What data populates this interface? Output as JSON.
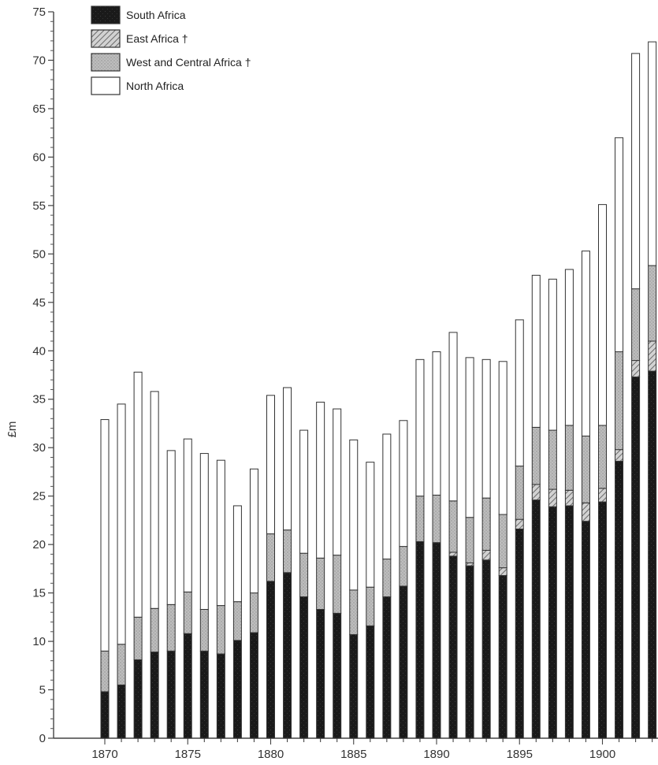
{
  "chart_data": {
    "type": "bar",
    "stacked": true,
    "ylabel": "£m",
    "xlabel": "",
    "ylim": [
      0,
      75
    ],
    "yticks": [
      0,
      5,
      10,
      15,
      20,
      25,
      30,
      35,
      40,
      45,
      50,
      55,
      60,
      65,
      70,
      75
    ],
    "x_tick_labels": [
      "1870",
      "1875",
      "1880",
      "1885",
      "1890",
      "1895",
      "1900"
    ],
    "grid": false,
    "legend_position": "top-left",
    "categories": [
      1870,
      1871,
      1872,
      1873,
      1874,
      1875,
      1876,
      1877,
      1878,
      1879,
      1880,
      1881,
      1882,
      1883,
      1884,
      1885,
      1886,
      1887,
      1888,
      1889,
      1890,
      1891,
      1892,
      1893,
      1894,
      1895,
      1896,
      1897,
      1898,
      1899,
      1900,
      1901,
      1902,
      1903
    ],
    "series": [
      {
        "name": "South Africa",
        "pattern": "solid-black",
        "values": [
          4.8,
          5.5,
          8.1,
          8.9,
          9.0,
          10.8,
          9.0,
          8.7,
          10.1,
          10.9,
          16.2,
          17.1,
          14.6,
          13.3,
          12.9,
          10.7,
          11.6,
          14.6,
          15.7,
          20.3,
          20.2,
          18.8,
          17.8,
          18.4,
          16.8,
          21.6,
          24.6,
          23.9,
          24.0,
          22.4,
          24.4,
          28.6,
          37.3,
          37.9
        ]
      },
      {
        "name": "East Africa †",
        "pattern": "hatched",
        "values": [
          0,
          0,
          0,
          0,
          0,
          0,
          0,
          0,
          0,
          0,
          0,
          0,
          0,
          0,
          0,
          0,
          0,
          0,
          0,
          0,
          0,
          0.4,
          0.3,
          1.0,
          0.8,
          1.0,
          1.6,
          1.8,
          1.6,
          1.9,
          1.4,
          1.2,
          1.7,
          3.1
        ]
      },
      {
        "name": "West and Central Africa †",
        "pattern": "stippled-grey",
        "values": [
          4.2,
          4.2,
          4.4,
          4.5,
          4.8,
          4.3,
          4.3,
          5.0,
          4.0,
          4.1,
          4.9,
          4.4,
          4.5,
          5.3,
          6.0,
          4.6,
          4.0,
          3.9,
          4.1,
          4.7,
          4.9,
          5.3,
          4.7,
          5.4,
          5.5,
          5.5,
          5.9,
          6.1,
          6.7,
          6.9,
          6.5,
          10.1,
          7.4,
          7.8
        ]
      },
      {
        "name": "North Africa",
        "pattern": "white",
        "values": [
          23.9,
          24.8,
          25.3,
          22.4,
          15.9,
          15.8,
          16.1,
          15.0,
          9.9,
          12.8,
          14.3,
          14.7,
          12.7,
          16.1,
          15.1,
          15.5,
          12.9,
          12.9,
          13.0,
          14.1,
          14.8,
          17.4,
          16.5,
          14.3,
          15.8,
          15.1,
          15.7,
          15.6,
          16.1,
          19.1,
          22.8,
          22.1,
          24.3,
          23.1
        ]
      }
    ]
  },
  "colors": {
    "south_africa": "#1a1a1a",
    "east_africa": "#9a9a9a",
    "west_central_africa": "#b9b9b9",
    "north_africa": "#ffffff",
    "outline": "#333333"
  }
}
